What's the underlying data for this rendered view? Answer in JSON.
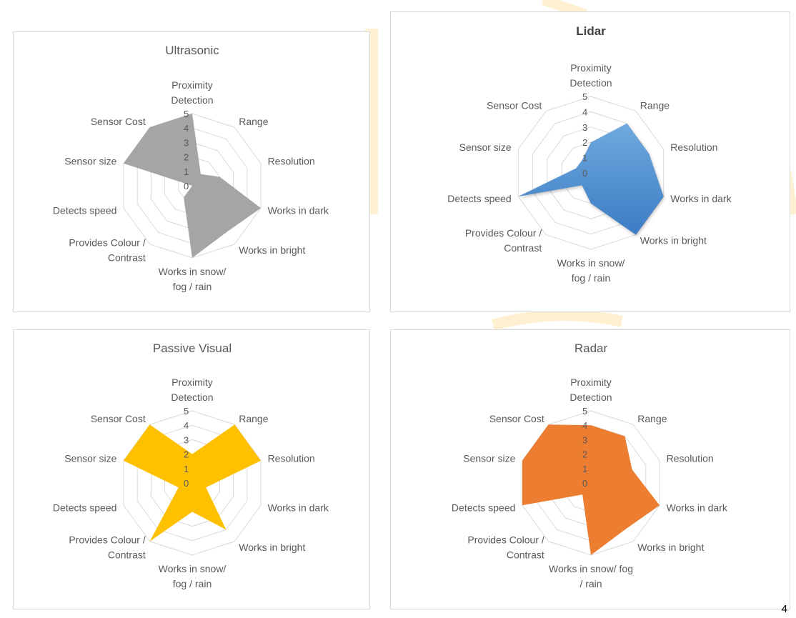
{
  "page_number": "4",
  "chart_data": [
    {
      "type": "radar",
      "title": "Ultrasonic",
      "title_bold": false,
      "categories": [
        [
          "Proximity",
          "Detection"
        ],
        [
          "Range"
        ],
        [
          "Resolution"
        ],
        [
          "Works in dark"
        ],
        [
          "Works in bright"
        ],
        [
          "Works in snow/",
          "fog / rain"
        ],
        [
          "Provides Colour /",
          "Contrast"
        ],
        [
          "Detects speed"
        ],
        [
          "Sensor size"
        ],
        [
          "Sensor Cost"
        ]
      ],
      "scale": [
        0,
        1,
        2,
        3,
        4,
        5
      ],
      "rmax": 5,
      "series": [
        {
          "values": [
            5,
            1,
            2,
            5,
            4,
            5,
            1,
            0,
            5,
            5
          ],
          "color": "#a5a5a5"
        }
      ]
    },
    {
      "type": "radar",
      "title": "Lidar",
      "title_bold": true,
      "categories": [
        [
          "Proximity",
          "Detection"
        ],
        [
          "Range"
        ],
        [
          "Resolution"
        ],
        [
          "Works in dark"
        ],
        [
          "Works in bright"
        ],
        [
          "Works in snow/",
          "fog / rain"
        ],
        [
          "Provides Colour /",
          "Contrast"
        ],
        [
          "Detects speed"
        ],
        [
          "Sensor size"
        ],
        [
          "Sensor Cost"
        ]
      ],
      "scale": [
        0,
        1,
        2,
        3,
        4,
        5
      ],
      "rmax": 5,
      "series": [
        {
          "values": [
            2,
            4,
            4,
            5,
            5,
            2,
            1,
            5,
            1,
            1
          ],
          "color": "#5b9bd5",
          "gradient": [
            "#6fa9df",
            "#3c7cc4"
          ]
        }
      ]
    },
    {
      "type": "radar",
      "title": "Passive Visual",
      "title_bold": false,
      "categories": [
        [
          "Proximity",
          "Detection"
        ],
        [
          "Range"
        ],
        [
          "Resolution"
        ],
        [
          "Works in dark"
        ],
        [
          "Works in bright"
        ],
        [
          "Works in snow/",
          "fog / rain"
        ],
        [
          "Provides Colour /",
          "Contrast"
        ],
        [
          "Detects speed"
        ],
        [
          "Sensor size"
        ],
        [
          "Sensor Cost"
        ]
      ],
      "scale": [
        0,
        1,
        2,
        3,
        4,
        5
      ],
      "rmax": 5,
      "series": [
        {
          "values": [
            2,
            5,
            5,
            1,
            4,
            2,
            5,
            1,
            5,
            5
          ],
          "color": "#ffc000"
        }
      ]
    },
    {
      "type": "radar",
      "title": "Radar",
      "title_bold": false,
      "categories": [
        [
          "Proximity",
          "Detection"
        ],
        [
          "Range"
        ],
        [
          "Resolution"
        ],
        [
          "Works in dark"
        ],
        [
          "Works in bright"
        ],
        [
          "Works in snow/ fog",
          "/ rain"
        ],
        [
          "Provides Colour /",
          "Contrast"
        ],
        [
          "Detects speed"
        ],
        [
          "Sensor size"
        ],
        [
          "Sensor Cost"
        ]
      ],
      "scale": [
        0,
        1,
        2,
        3,
        4,
        5
      ],
      "rmax": 5,
      "series": [
        {
          "values": [
            4,
            4,
            3,
            5,
            4,
            5,
            1,
            5,
            5,
            5
          ],
          "color": "#ed7d31"
        }
      ]
    }
  ]
}
